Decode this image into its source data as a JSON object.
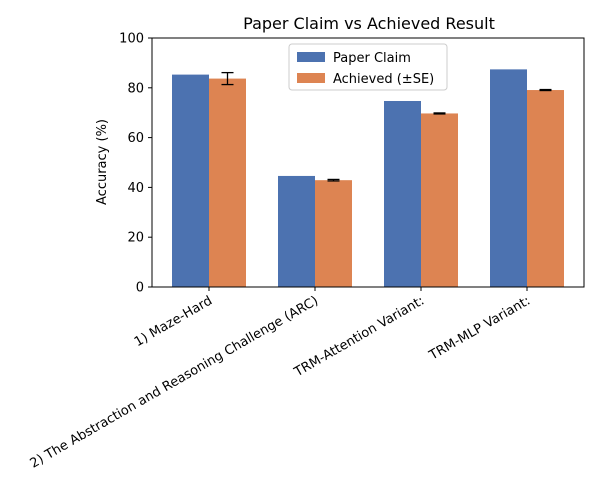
{
  "chart_data": {
    "type": "bar",
    "title": "Paper Claim vs Achieved Result",
    "xlabel": "",
    "ylabel": "Accuracy (%)",
    "ylim": [
      0,
      100
    ],
    "yticks": [
      0,
      20,
      40,
      60,
      80,
      100
    ],
    "categories": [
      "1) Maze-Hard",
      "2) The Abstraction and Reasoning Challenge (ARC)",
      "TRM-Attention Variant:",
      "TRM-MLP Variant:"
    ],
    "series": [
      {
        "name": "Paper Claim",
        "color": "#4c72b0",
        "values": [
          85.3,
          44.6,
          74.7,
          87.4
        ],
        "errors": null
      },
      {
        "name": "Achieved (±SE)",
        "color": "#dd8452",
        "values": [
          83.7,
          42.9,
          69.7,
          79.1
        ],
        "errors": [
          2.4,
          0.3,
          0.2,
          0.2
        ]
      }
    ],
    "legend": "upper center",
    "grid": false
  }
}
